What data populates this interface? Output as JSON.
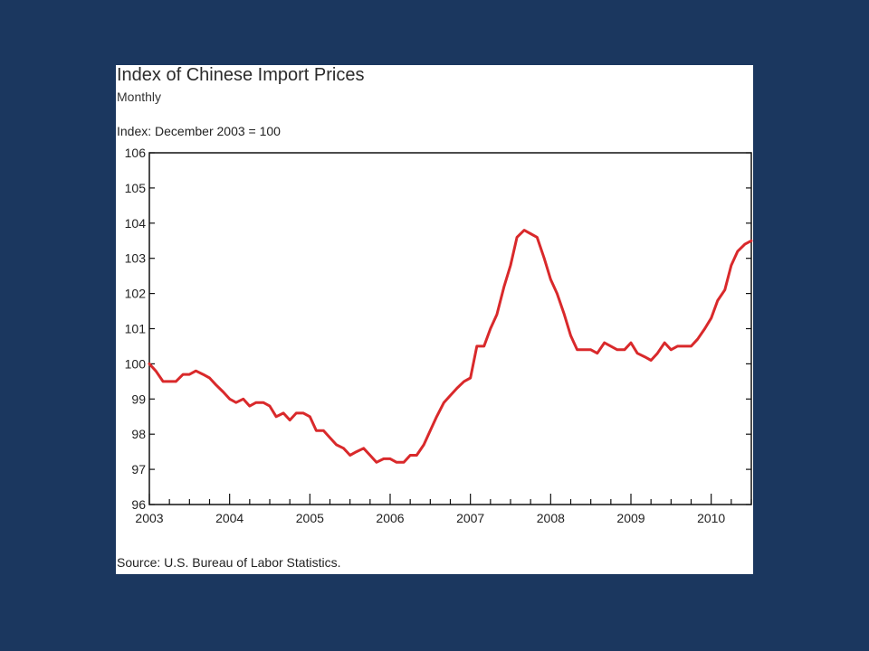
{
  "header": {
    "title": "Index of Chinese Import Prices",
    "subtitle": "Monthly",
    "unit_label": "Index: December 2003 = 100"
  },
  "footer": {
    "source": "Source: U.S. Bureau of Labor Statistics."
  },
  "colors": {
    "background": "#1b375f",
    "panel": "#ffffff",
    "line": "#d9292b",
    "axis": "#111111"
  },
  "chart_data": {
    "type": "line",
    "title": "Index of Chinese Import Prices",
    "subtitle": "Monthly",
    "ylabel": "Index: December 2003 = 100",
    "ylim": [
      96,
      106
    ],
    "yticks": [
      96,
      97,
      98,
      99,
      100,
      101,
      102,
      103,
      104,
      105,
      106
    ],
    "xlim": [
      2003,
      2010.5
    ],
    "xticks": [
      2003,
      2004,
      2005,
      2006,
      2007,
      2008,
      2009,
      2010
    ],
    "grid": false,
    "series": [
      {
        "points": [
          [
            2003.0,
            100.0
          ],
          [
            2003.08,
            99.8
          ],
          [
            2003.17,
            99.5
          ],
          [
            2003.25,
            99.5
          ],
          [
            2003.33,
            99.5
          ],
          [
            2003.42,
            99.7
          ],
          [
            2003.5,
            99.7
          ],
          [
            2003.58,
            99.8
          ],
          [
            2003.67,
            99.7
          ],
          [
            2003.75,
            99.6
          ],
          [
            2003.83,
            99.4
          ],
          [
            2003.92,
            99.2
          ],
          [
            2004.0,
            99.0
          ],
          [
            2004.08,
            98.9
          ],
          [
            2004.17,
            99.0
          ],
          [
            2004.25,
            98.8
          ],
          [
            2004.33,
            98.9
          ],
          [
            2004.42,
            98.9
          ],
          [
            2004.5,
            98.8
          ],
          [
            2004.58,
            98.5
          ],
          [
            2004.67,
            98.6
          ],
          [
            2004.75,
            98.4
          ],
          [
            2004.83,
            98.6
          ],
          [
            2004.92,
            98.6
          ],
          [
            2005.0,
            98.5
          ],
          [
            2005.08,
            98.1
          ],
          [
            2005.17,
            98.1
          ],
          [
            2005.25,
            97.9
          ],
          [
            2005.33,
            97.7
          ],
          [
            2005.42,
            97.6
          ],
          [
            2005.5,
            97.4
          ],
          [
            2005.58,
            97.5
          ],
          [
            2005.67,
            97.6
          ],
          [
            2005.75,
            97.4
          ],
          [
            2005.83,
            97.2
          ],
          [
            2005.92,
            97.3
          ],
          [
            2006.0,
            97.3
          ],
          [
            2006.08,
            97.2
          ],
          [
            2006.17,
            97.2
          ],
          [
            2006.25,
            97.4
          ],
          [
            2006.33,
            97.4
          ],
          [
            2006.42,
            97.7
          ],
          [
            2006.5,
            98.1
          ],
          [
            2006.58,
            98.5
          ],
          [
            2006.67,
            98.9
          ],
          [
            2006.75,
            99.1
          ],
          [
            2006.83,
            99.3
          ],
          [
            2006.92,
            99.5
          ],
          [
            2007.0,
            99.6
          ],
          [
            2007.08,
            100.5
          ],
          [
            2007.17,
            100.5
          ],
          [
            2007.25,
            101.0
          ],
          [
            2007.33,
            101.4
          ],
          [
            2007.42,
            102.2
          ],
          [
            2007.5,
            102.8
          ],
          [
            2007.58,
            103.6
          ],
          [
            2007.67,
            103.8
          ],
          [
            2007.75,
            103.7
          ],
          [
            2007.83,
            103.6
          ],
          [
            2007.92,
            103.0
          ],
          [
            2008.0,
            102.4
          ],
          [
            2008.08,
            102.0
          ],
          [
            2008.17,
            101.4
          ],
          [
            2008.25,
            100.8
          ],
          [
            2008.33,
            100.4
          ],
          [
            2008.42,
            100.4
          ],
          [
            2008.5,
            100.4
          ],
          [
            2008.58,
            100.3
          ],
          [
            2008.67,
            100.6
          ],
          [
            2008.75,
            100.5
          ],
          [
            2008.83,
            100.4
          ],
          [
            2008.92,
            100.4
          ],
          [
            2009.0,
            100.6
          ],
          [
            2009.08,
            100.3
          ],
          [
            2009.17,
            100.2
          ],
          [
            2009.25,
            100.1
          ],
          [
            2009.33,
            100.3
          ],
          [
            2009.42,
            100.6
          ],
          [
            2009.5,
            100.4
          ],
          [
            2009.58,
            100.5
          ],
          [
            2009.67,
            100.5
          ],
          [
            2009.75,
            100.5
          ],
          [
            2009.83,
            100.7
          ],
          [
            2009.92,
            101.0
          ],
          [
            2010.0,
            101.3
          ],
          [
            2010.08,
            101.8
          ],
          [
            2010.17,
            102.1
          ],
          [
            2010.25,
            102.8
          ],
          [
            2010.33,
            103.2
          ],
          [
            2010.42,
            103.4
          ],
          [
            2010.5,
            103.5
          ]
        ]
      }
    ]
  }
}
